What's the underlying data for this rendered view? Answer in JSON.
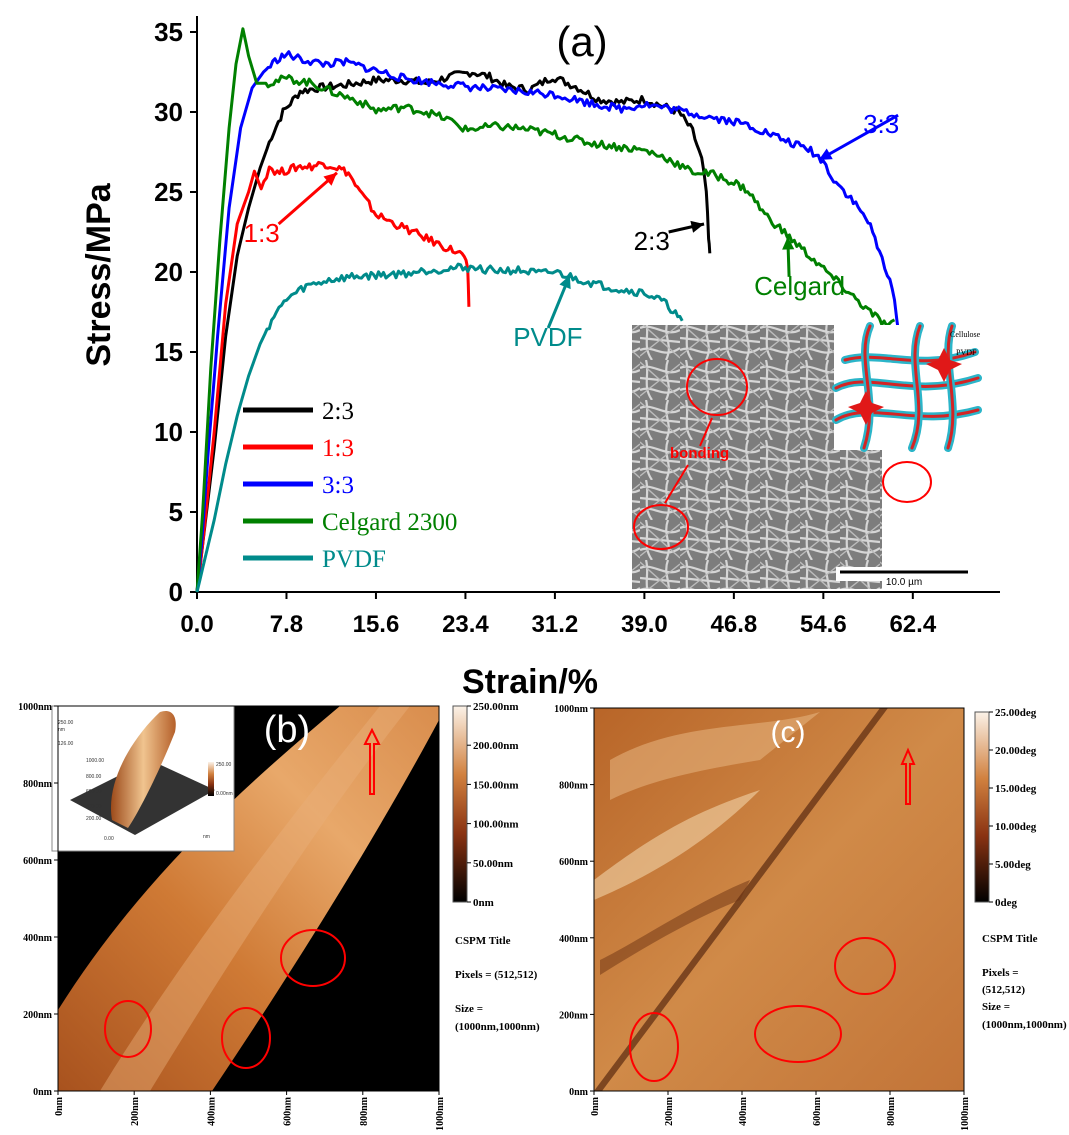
{
  "chart_data": [
    {
      "type": "line",
      "panel_label": "(a)",
      "xlabel": "Strain/%",
      "ylabel": "Stress/MPa",
      "xlim": [
        0,
        70
      ],
      "ylim": [
        0,
        36
      ],
      "xticks": [
        "0.0",
        "7.8",
        "15.6",
        "23.4",
        "31.2",
        "39.0",
        "46.8",
        "54.6",
        "62.4"
      ],
      "xtick_values": [
        0,
        7.8,
        15.6,
        23.4,
        31.2,
        39.0,
        46.8,
        54.6,
        62.4
      ],
      "yticks": [
        "0",
        "5",
        "10",
        "15",
        "20",
        "25",
        "30",
        "35"
      ],
      "ytick_values": [
        0,
        5,
        10,
        15,
        20,
        25,
        30,
        35
      ],
      "legend_position": "bottom-left",
      "legend": [
        "2:3",
        "1:3",
        "3:3",
        "Celgard 2300",
        "PVDF"
      ],
      "series": [
        {
          "name": "2:3",
          "color": "#000000",
          "label": "2:3",
          "label_at": [
            38.5,
            22
          ],
          "arrow_to": [
            44.2,
            23.0
          ],
          "points": [
            [
              0,
              0
            ],
            [
              0.5,
              3
            ],
            [
              1.5,
              9
            ],
            [
              2.5,
              16
            ],
            [
              3.5,
              21
            ],
            [
              4.5,
              24
            ],
            [
              5.5,
              26.5
            ],
            [
              6.5,
              28.5
            ],
            [
              7.5,
              30
            ],
            [
              9,
              31.3
            ],
            [
              10.5,
              31.5
            ],
            [
              13,
              31.7
            ],
            [
              15.6,
              32
            ],
            [
              18,
              32
            ],
            [
              20,
              31.8
            ],
            [
              22,
              32.2
            ],
            [
              24,
              32.5
            ],
            [
              25.5,
              32.2
            ],
            [
              27,
              31.6
            ],
            [
              29,
              31.4
            ],
            [
              31,
              32.2
            ],
            [
              33,
              31.6
            ],
            [
              35,
              30.8
            ],
            [
              37,
              30.6
            ],
            [
              39,
              30.8
            ],
            [
              40.5,
              30.4
            ],
            [
              42,
              30
            ],
            [
              43.2,
              28.8
            ],
            [
              44,
              27
            ],
            [
              44.4,
              25
            ],
            [
              44.6,
              22
            ],
            [
              44.7,
              21.2
            ]
          ]
        },
        {
          "name": "1:3",
          "color": "#ff0000",
          "label": "1:3",
          "label_at": [
            4.5,
            22.5
          ],
          "arrow_to": [
            12.2,
            26.2
          ],
          "points": [
            [
              0,
              0
            ],
            [
              0.5,
              3
            ],
            [
              1.5,
              10
            ],
            [
              2.5,
              18
            ],
            [
              3.5,
              23
            ],
            [
              4.5,
              25
            ],
            [
              5,
              26.3
            ],
            [
              5.6,
              25.2
            ],
            [
              6.3,
              26.6
            ],
            [
              7,
              26.2
            ],
            [
              8,
              26.4
            ],
            [
              9,
              26.6
            ],
            [
              10,
              26.6
            ],
            [
              11,
              26.8
            ],
            [
              12,
              26.6
            ],
            [
              13.2,
              26.2
            ],
            [
              14,
              25.2
            ],
            [
              15,
              24.2
            ],
            [
              15.6,
              23.6
            ],
            [
              17,
              23.1
            ],
            [
              18.5,
              22.6
            ],
            [
              20,
              22.1
            ],
            [
              21.5,
              21.6
            ],
            [
              22.5,
              21.3
            ],
            [
              23.3,
              21.0
            ],
            [
              23.6,
              20
            ],
            [
              23.7,
              17.9
            ]
          ]
        },
        {
          "name": "3:3",
          "color": "#0000ff",
          "label": "3:3",
          "label_at": [
            58.5,
            29.3
          ],
          "arrow_to": [
            54.2,
            27.0
          ],
          "points": [
            [
              0,
              0
            ],
            [
              0.4,
              3
            ],
            [
              1,
              9
            ],
            [
              1.8,
              16
            ],
            [
              2.8,
              24
            ],
            [
              3.8,
              29
            ],
            [
              4.8,
              31.5
            ],
            [
              5.8,
              32.5
            ],
            [
              7,
              33.3
            ],
            [
              7.8,
              33.6
            ],
            [
              9,
              33.3
            ],
            [
              11,
              33.0
            ],
            [
              13,
              33.1
            ],
            [
              15.6,
              32.6
            ],
            [
              18,
              32.1
            ],
            [
              20,
              31.9
            ],
            [
              23.4,
              31.6
            ],
            [
              26,
              31.4
            ],
            [
              28,
              31.3
            ],
            [
              31.2,
              31.1
            ],
            [
              34,
              30.6
            ],
            [
              37,
              30.2
            ],
            [
              39,
              30.5
            ],
            [
              42,
              30.1
            ],
            [
              44,
              29.8
            ],
            [
              46.8,
              29.4
            ],
            [
              48,
              29.2
            ],
            [
              50,
              28.6
            ],
            [
              52,
              28.0
            ],
            [
              53.5,
              27.6
            ],
            [
              54.6,
              26.9
            ],
            [
              55.5,
              25.8
            ],
            [
              57,
              24.6
            ],
            [
              58.5,
              23.2
            ],
            [
              59.5,
              21.2
            ],
            [
              60.4,
              19.6
            ],
            [
              61,
              17.2
            ],
            [
              61.3,
              15
            ]
          ]
        },
        {
          "name": "Celgard 2300",
          "color": "#008000",
          "label": "Celgard",
          "label_at": [
            49,
            19.2
          ],
          "arrow_to": [
            51.5,
            22.2
          ],
          "points": [
            [
              0,
              0
            ],
            [
              0.5,
              5
            ],
            [
              1.2,
              14
            ],
            [
              2,
              22
            ],
            [
              2.8,
              29
            ],
            [
              3.4,
              33
            ],
            [
              4,
              35.2
            ],
            [
              4.5,
              33.5
            ],
            [
              5.2,
              31.8
            ],
            [
              6.2,
              31.8
            ],
            [
              7.8,
              32.1
            ],
            [
              10,
              31.8
            ],
            [
              12,
              31.2
            ],
            [
              14,
              30.7
            ],
            [
              15.6,
              30.1
            ],
            [
              18,
              30.3
            ],
            [
              20,
              30.0
            ],
            [
              22,
              29.5
            ],
            [
              23.4,
              28.9
            ],
            [
              26,
              29.1
            ],
            [
              28,
              29.0
            ],
            [
              31.2,
              28.6
            ],
            [
              34,
              28.1
            ],
            [
              37,
              27.8
            ],
            [
              39,
              27.6
            ],
            [
              41,
              27.1
            ],
            [
              43,
              26.3
            ],
            [
              45,
              26.1
            ],
            [
              46.8,
              25.6
            ],
            [
              48,
              25.1
            ],
            [
              49.5,
              23.6
            ],
            [
              51,
              22.6
            ],
            [
              52.5,
              21.6
            ],
            [
              54,
              20.6
            ],
            [
              55.5,
              19.6
            ],
            [
              57,
              18.6
            ],
            [
              58.5,
              17.6
            ],
            [
              59.5,
              17.0
            ],
            [
              60.3,
              16.6
            ],
            [
              60.8,
              16.8
            ]
          ]
        },
        {
          "name": "PVDF",
          "color": "#008b8b",
          "label": "PVDF",
          "label_at": [
            28,
            16
          ],
          "arrow_to": [
            32.5,
            19.8
          ],
          "points": [
            [
              0,
              0
            ],
            [
              0.5,
              1.5
            ],
            [
              1.5,
              4.5
            ],
            [
              2.5,
              8
            ],
            [
              3.5,
              11
            ],
            [
              4.5,
              13.5
            ],
            [
              5.5,
              15.5
            ],
            [
              6.5,
              17
            ],
            [
              7.8,
              18.3
            ],
            [
              9.5,
              19.1
            ],
            [
              11.5,
              19.5
            ],
            [
              13.5,
              19.7
            ],
            [
              15.6,
              19.8
            ],
            [
              18,
              19.9
            ],
            [
              20,
              20.1
            ],
            [
              23.4,
              20.3
            ],
            [
              26,
              20.1
            ],
            [
              28,
              20.1
            ],
            [
              30,
              19.9
            ],
            [
              31.2,
              20.0
            ],
            [
              33,
              19.6
            ],
            [
              35,
              19.2
            ],
            [
              37,
              18.9
            ],
            [
              39,
              18.7
            ],
            [
              40.5,
              18.2
            ],
            [
              41.5,
              17.6
            ],
            [
              42.3,
              16.8
            ]
          ]
        }
      ]
    },
    {
      "type": "heatmap",
      "panel_label": "(b)",
      "x_ticks": [
        "0nm",
        "200nm",
        "400nm",
        "600nm",
        "800nm",
        "1000nm"
      ],
      "y_ticks": [
        "0nm",
        "200nm",
        "400nm",
        "600nm",
        "800nm",
        "1000nm"
      ],
      "colorbar_ticks": [
        "0nm",
        "50.00nm",
        "100.00nm",
        "150.00nm",
        "200.00nm",
        "250.00nm"
      ],
      "colorbar_range": [
        0,
        250
      ],
      "info": [
        "CSPM Title",
        "Pixels = (512,512)",
        "Size = (1000nm,1000nm)"
      ],
      "inset_3d_labels": [
        "250.00",
        "nm",
        "126.00",
        "1000.00",
        "800.00",
        "600.00",
        "400.00",
        "200.00",
        "0.00",
        "nm",
        "250.00",
        "0.00nm"
      ]
    },
    {
      "type": "heatmap",
      "panel_label": "(c)",
      "x_ticks": [
        "0nm",
        "200nm",
        "400nm",
        "600nm",
        "800nm",
        "1000nm"
      ],
      "y_ticks": [
        "0nm",
        "200nm",
        "400nm",
        "600nm",
        "800nm",
        "1000nm"
      ],
      "colorbar_ticks": [
        "0deg",
        "5.00deg",
        "10.00deg",
        "15.00deg",
        "20.00deg",
        "25.00deg"
      ],
      "colorbar_range": [
        0,
        25
      ],
      "info": [
        "CSPM Title",
        "Pixels = (512,512)",
        "Size = (1000nm,1000nm)"
      ]
    }
  ],
  "sem_inset": {
    "bonding_label": "bonding",
    "scale_bar": "10.0 µm",
    "schematic_labels": [
      "Cellulose",
      "PVDF"
    ]
  },
  "colors": {
    "afm_dark": "#000000",
    "afm_mid": "#c8682a",
    "afm_light": "#f6e2cb",
    "annotation": "#ff0000"
  }
}
